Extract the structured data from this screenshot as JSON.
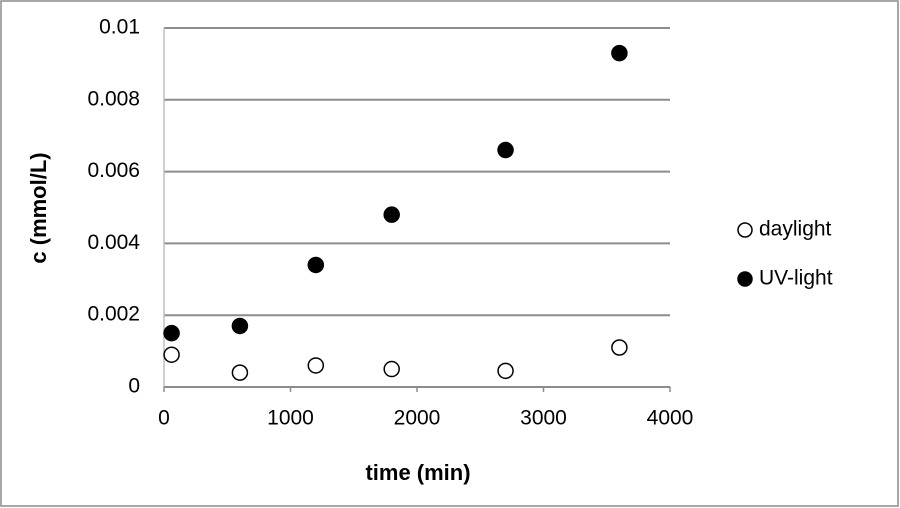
{
  "chart_data": {
    "type": "scatter",
    "x_label": "time (min)",
    "y_label": "c (mmol/L)",
    "xlim": [
      0,
      4000
    ],
    "xticks": [
      0,
      1000,
      2000,
      3000,
      4000
    ],
    "ylim": [
      0,
      0.01
    ],
    "yticks": [
      0,
      0.002,
      0.004,
      0.006,
      0.008,
      0.01
    ],
    "grid": true,
    "legend": "right",
    "series": [
      {
        "name": "daylight",
        "color": "#000000",
        "filled": false,
        "x": [
          60,
          600,
          1200,
          1800,
          2700,
          3600
        ],
        "values": [
          0.0009,
          0.0004,
          0.0006,
          0.0005,
          0.00045,
          0.0011
        ]
      },
      {
        "name": "UV-light",
        "color": "#000000",
        "filled": true,
        "x": [
          60,
          600,
          1200,
          1800,
          2700,
          3600
        ],
        "values": [
          0.0015,
          0.0017,
          0.0034,
          0.0048,
          0.0066,
          0.0093
        ]
      }
    ]
  }
}
